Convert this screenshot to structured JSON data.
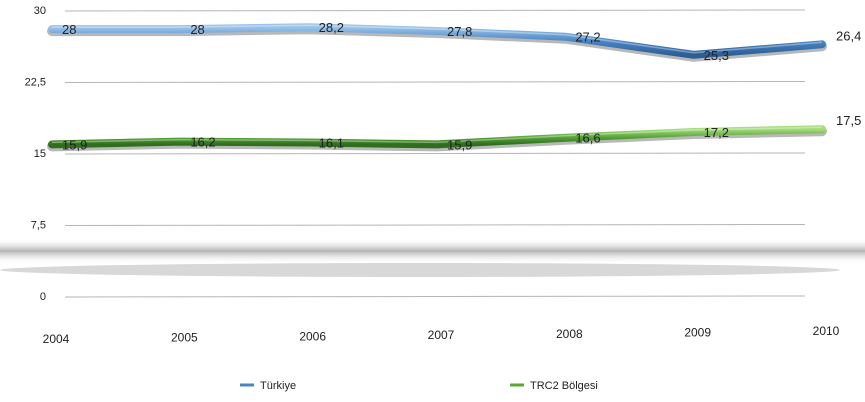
{
  "chart_data": {
    "type": "line",
    "x": [
      "2004",
      "2005",
      "2006",
      "2007",
      "2008",
      "2009",
      "2010"
    ],
    "series": [
      {
        "name": "Türkiye",
        "values": [
          28,
          28,
          28.2,
          27.8,
          27.2,
          25.3,
          26.4
        ],
        "labels": [
          "28",
          "28",
          "28,2",
          "27,8",
          "27,2",
          "25,3",
          "26,4"
        ],
        "color": "#4a86c5"
      },
      {
        "name": "TRC2 Bölgesi",
        "values": [
          15.9,
          16.2,
          16.1,
          15.9,
          16.6,
          17.2,
          17.5
        ],
        "labels": [
          "15,9",
          "16,2",
          "16,1",
          "15,9",
          "16,6",
          "17,2",
          "17,5"
        ],
        "color": "#5aa83a"
      }
    ],
    "yticks": [
      "0",
      "7,5",
      "15",
      "22,5",
      "30"
    ],
    "ytick_values": [
      0,
      7.5,
      15,
      22.5,
      30
    ],
    "ylim": [
      0,
      30
    ],
    "grid": true,
    "legend_position": "bottom",
    "title": "",
    "xlabel": "",
    "ylabel": ""
  }
}
